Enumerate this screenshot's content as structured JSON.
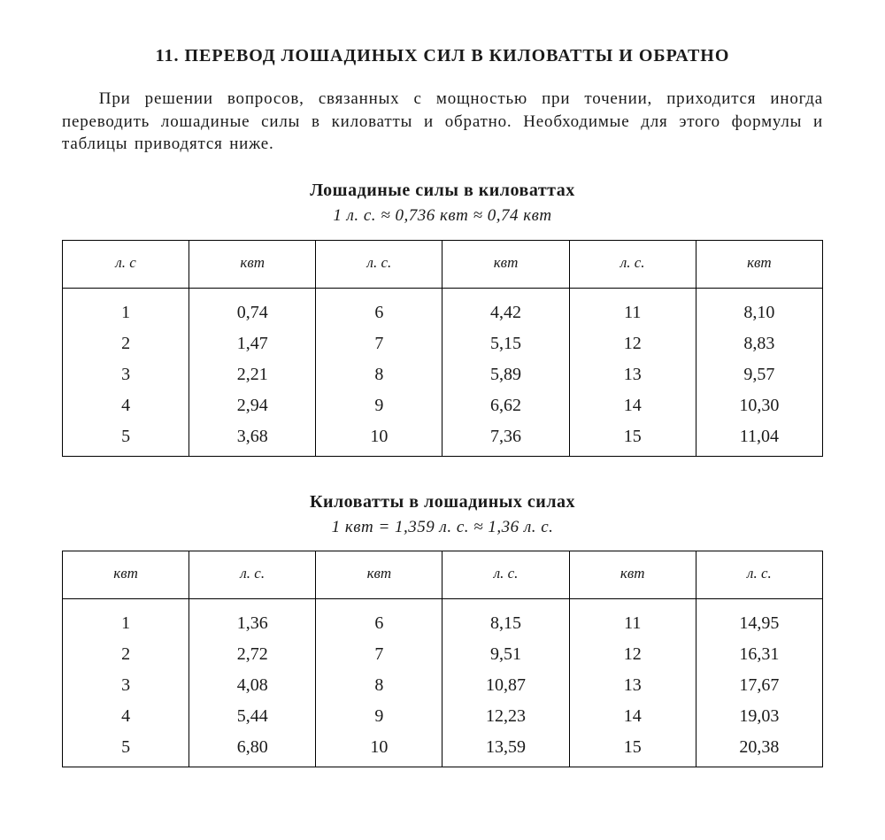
{
  "title": "11. ПЕРЕВОД ЛОШАДИНЫХ СИЛ В КИЛОВАТТЫ И ОБРАТНО",
  "intro": "При решении вопросов, связанных с мощностью при точении, приходится иногда переводить лошадиные силы в киловатты и обратно. Необходимые для этого формулы и таблицы приводятся ниже.",
  "table1": {
    "heading": "Лошадиные силы в киловаттах",
    "subheading_html": "1 <span class='it'>л. с.</span> ≈ 0,736 <span class='it'>квт</span> ≈ 0,74 <span class='it'>квт</span>",
    "col_labels": [
      "л. с",
      "квт",
      "л. с.",
      "квт",
      "л. с.",
      "квт"
    ],
    "rows": [
      [
        "1",
        "0,74",
        "6",
        "4,42",
        "11",
        "8,10"
      ],
      [
        "2",
        "1,47",
        "7",
        "5,15",
        "12",
        "8,83"
      ],
      [
        "3",
        "2,21",
        "8",
        "5,89",
        "13",
        "9,57"
      ],
      [
        "4",
        "2,94",
        "9",
        "6,62",
        "14",
        "10,30"
      ],
      [
        "5",
        "3,68",
        "10",
        "7,36",
        "15",
        "11,04"
      ]
    ]
  },
  "table2": {
    "heading": "Киловатты в лошадиных силах",
    "subheading_html": "1 <span class='it'>квт</span> = 1,359 <span class='it'>л. с.</span> ≈ 1,36 <span class='it'>л. с.</span>",
    "col_labels": [
      "квт",
      "л. с.",
      "квт",
      "л. с.",
      "квт",
      "л. с."
    ],
    "rows": [
      [
        "1",
        "1,36",
        "6",
        "8,15",
        "11",
        "14,95"
      ],
      [
        "2",
        "2,72",
        "7",
        "9,51",
        "12",
        "16,31"
      ],
      [
        "3",
        "4,08",
        "8",
        "10,87",
        "13",
        "17,67"
      ],
      [
        "4",
        "5,44",
        "9",
        "12,23",
        "14",
        "19,03"
      ],
      [
        "5",
        "6,80",
        "10",
        "13,59",
        "15",
        "20,38"
      ]
    ]
  }
}
